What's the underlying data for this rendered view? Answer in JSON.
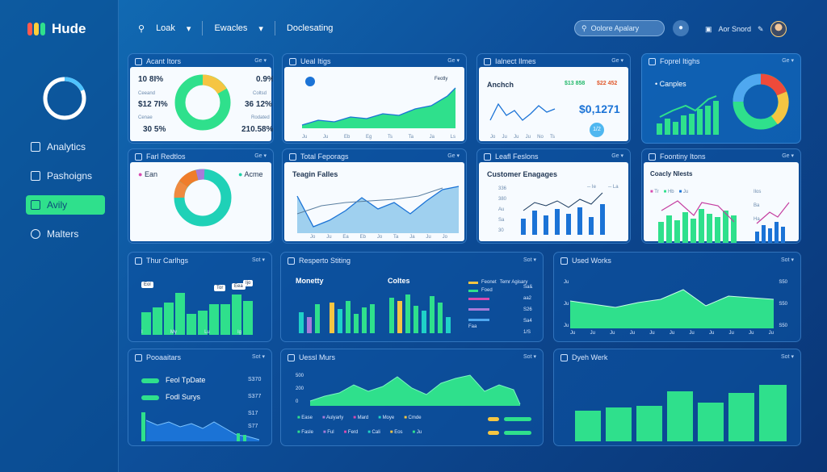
{
  "app": {
    "name": "Hude"
  },
  "topnav": {
    "item1": "Loak",
    "item2": "Ewacles",
    "item3": "Doclesating"
  },
  "search": {
    "placeholder": "Oolore Apalary"
  },
  "user": {
    "label": "Aor Snord"
  },
  "sidebar": {
    "items": [
      {
        "label": "Analytics"
      },
      {
        "label": "Pashoigns"
      },
      {
        "label": "Avily"
      },
      {
        "label": "Malters"
      }
    ]
  },
  "cards": {
    "c1": {
      "title": "Acant Itors",
      "dd": "Ge",
      "l1": "10 8I%",
      "l2": "Ceeand",
      "l3": "$12 7I%",
      "l4": "Cenae",
      "l5": "30 5%",
      "r1": "0.9%",
      "r2": "Coltsd",
      "r3": "36 12%",
      "r4": "Rodated",
      "r5": "210.58%"
    },
    "c2": {
      "title": "Ueal Itigs",
      "dd": "Ge",
      "legend": "Feotly",
      "ticks": [
        "Ju",
        "Ju",
        "Eb",
        "Eg",
        "Ts",
        "Ta",
        "Ja",
        "Ls"
      ]
    },
    "c3": {
      "title": "Ialnect Ilmes",
      "dd": "Ge",
      "label": "Anchch",
      "v1": "$13 858",
      "v2": "$22 452",
      "big": "$0,1271",
      "badge": "1/2",
      "ticks": [
        "Jo",
        "Ju",
        "Ju",
        "Ju",
        "No",
        "Ts"
      ]
    },
    "c4": {
      "title": "Foprel Itighs",
      "dd": "Ge",
      "label": "Canples"
    },
    "c5": {
      "title": "Farl Redtlos",
      "dd": "Ge",
      "l1": "Ean",
      "l2": "Acme"
    },
    "c6": {
      "title": "Total Feporags",
      "dd": "Ge",
      "sub": "Teagin Falles",
      "ticks": [
        "Jo",
        "Ju",
        "Ea",
        "Eb",
        "Jo",
        "Ta",
        "Ja",
        "Ju",
        "Jo"
      ]
    },
    "c7": {
      "title": "Leafl Feslons",
      "dd": "Ge",
      "sub": "Customer Enagages",
      "ylab": [
        "336",
        "380",
        "Au",
        "Sa",
        "30"
      ],
      "legend": [
        "Ie",
        "La"
      ]
    },
    "c8": {
      "title": "Foontiny Itons",
      "dd": "Ge",
      "sub": "Coacly Nlests",
      "legend": [
        "Tr",
        "Hb",
        "Ju"
      ],
      "side": [
        "Ilos",
        "Ba",
        "Ha"
      ]
    },
    "c9": {
      "title": "Thur Carlhgs",
      "dd": "Sot",
      "tags": [
        "Eol",
        "Tor",
        "Eea",
        "Ijo"
      ],
      "ticks": [
        "I",
        "My",
        "Lu",
        "Ig"
      ]
    },
    "c10": {
      "title": "Resperto Stiting",
      "dd": "Sot",
      "a": "Monetty",
      "b": "Coltes",
      "legend": [
        "Feonet",
        "Temr Agisary",
        "Foed",
        "Faa"
      ],
      "side": [
        "Sa&",
        "aa2",
        "S26",
        "Sa4",
        "1/S"
      ]
    },
    "c11": {
      "title": "Used Works",
      "dd": "Sot",
      "yl": [
        "Ju",
        "Ju",
        "Ju"
      ],
      "yr": [
        "S50",
        "S50",
        "S50"
      ],
      "ticks": [
        "Ju",
        "Ju",
        "Ju",
        "Ju",
        "Ju",
        "Ju",
        "Ju",
        "Ju",
        "Ju",
        "Ju",
        "Ju"
      ]
    },
    "c12": {
      "title": "Pooaaitars",
      "dd": "Sot",
      "r1": "Feol TpDate",
      "r1v": "S370",
      "r2": "Fodl Surys",
      "r2v": "S377",
      "v3": "S17",
      "v4": "S77"
    },
    "c13": {
      "title": "Uessl Murs",
      "dd": "Sot",
      "yl": [
        "500",
        "200",
        "0"
      ],
      "legend1": [
        "Ease",
        "Aulyarly",
        "Mard",
        "Moye",
        "Cmde"
      ],
      "legend2": [
        "Fasle",
        "Ful",
        "Ferd",
        "Cali",
        "Eos",
        "Ju"
      ]
    },
    "c14": {
      "title": "Dyeh Werk",
      "dd": "Sot"
    }
  },
  "colors": {
    "green": "#2fe08c",
    "blue": "#1b73d6",
    "yellow": "#f5c542",
    "orange": "#ef7d2b",
    "purple": "#a77bd9",
    "cyan": "#1fd1c7"
  }
}
